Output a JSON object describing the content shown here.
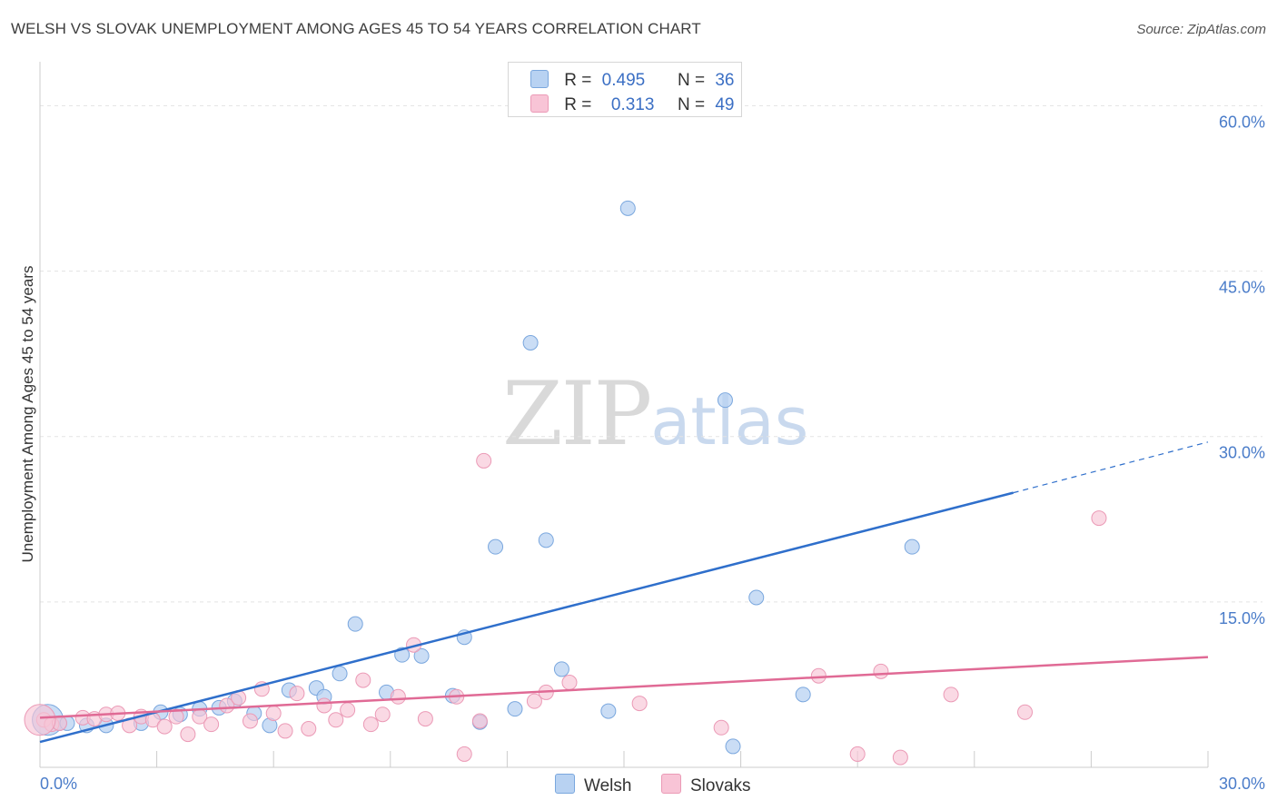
{
  "header": {
    "title": "WELSH VS SLOVAK UNEMPLOYMENT AMONG AGES 45 TO 54 YEARS CORRELATION CHART",
    "source": "Source: ZipAtlas.com"
  },
  "watermark": {
    "zip": "ZIP",
    "atlas": "atlas"
  },
  "legend": {
    "welsh": {
      "r_label": "R =",
      "r_value": "0.495",
      "n_label": "N =",
      "n_value": "36"
    },
    "slovaks": {
      "r_label": "R =",
      "r_value": "0.313",
      "n_label": "N =",
      "n_value": "49"
    }
  },
  "colors": {
    "welsh_fill": "#b8d2f2",
    "welsh_stroke": "#7aa7de",
    "welsh_line": "#2f6fcb",
    "slovaks_fill": "#f8c4d6",
    "slovaks_stroke": "#eb9ab6",
    "slovaks_line": "#e06a95",
    "axis_text": "#4a7cc9",
    "grid": "#e3e3e3"
  },
  "chart_data": {
    "type": "scatter",
    "title": "WELSH VS SLOVAK UNEMPLOYMENT AMONG AGES 45 TO 54 YEARS CORRELATION CHART",
    "xlabel": "",
    "ylabel": "Unemployment Among Ages 45 to 54 years",
    "xlim": [
      0,
      30
    ],
    "ylim": [
      0,
      63
    ],
    "x_tick_labels": [
      "0.0%",
      "30.0%"
    ],
    "y_ticks": [
      15,
      30,
      45,
      60
    ],
    "y_tick_labels": [
      "15.0%",
      "30.0%",
      "45.0%",
      "60.0%"
    ],
    "grid": true,
    "legend_position": "top-center",
    "series": [
      {
        "name": "Welsh",
        "points": [
          [
            0.2,
            4.3
          ],
          [
            0.5,
            4.0
          ],
          [
            0.7,
            4.0
          ],
          [
            1.2,
            3.8
          ],
          [
            1.7,
            3.8
          ],
          [
            2.6,
            4.0
          ],
          [
            3.1,
            5.0
          ],
          [
            3.6,
            4.8
          ],
          [
            4.1,
            5.3
          ],
          [
            4.6,
            5.4
          ],
          [
            5.0,
            6.0
          ],
          [
            5.5,
            4.9
          ],
          [
            5.9,
            3.8
          ],
          [
            6.4,
            7.0
          ],
          [
            7.1,
            7.2
          ],
          [
            7.3,
            6.4
          ],
          [
            7.7,
            8.5
          ],
          [
            8.1,
            13.0
          ],
          [
            8.9,
            6.8
          ],
          [
            9.3,
            10.2
          ],
          [
            9.8,
            10.1
          ],
          [
            10.6,
            6.5
          ],
          [
            10.9,
            11.8
          ],
          [
            11.3,
            4.1
          ],
          [
            11.7,
            20.0
          ],
          [
            12.2,
            5.3
          ],
          [
            12.6,
            38.5
          ],
          [
            13.0,
            20.6
          ],
          [
            13.4,
            8.9
          ],
          [
            14.6,
            5.1
          ],
          [
            15.1,
            50.7
          ],
          [
            17.6,
            33.3
          ],
          [
            17.8,
            1.9
          ],
          [
            18.4,
            15.4
          ],
          [
            19.6,
            6.6
          ],
          [
            22.4,
            20.0
          ]
        ]
      },
      {
        "name": "Slovaks",
        "points": [
          [
            0.1,
            4.3
          ],
          [
            0.3,
            3.9
          ],
          [
            0.5,
            4.0
          ],
          [
            1.1,
            4.5
          ],
          [
            1.4,
            4.4
          ],
          [
            1.7,
            4.8
          ],
          [
            2.0,
            4.9
          ],
          [
            2.3,
            3.8
          ],
          [
            2.6,
            4.6
          ],
          [
            2.9,
            4.3
          ],
          [
            3.2,
            3.7
          ],
          [
            3.5,
            4.6
          ],
          [
            3.8,
            3.0
          ],
          [
            4.1,
            4.6
          ],
          [
            4.4,
            3.9
          ],
          [
            4.8,
            5.6
          ],
          [
            5.1,
            6.3
          ],
          [
            5.4,
            4.2
          ],
          [
            5.7,
            7.1
          ],
          [
            6.0,
            4.9
          ],
          [
            6.3,
            3.3
          ],
          [
            6.6,
            6.7
          ],
          [
            6.9,
            3.5
          ],
          [
            7.3,
            5.6
          ],
          [
            7.6,
            4.3
          ],
          [
            7.9,
            5.2
          ],
          [
            8.3,
            7.9
          ],
          [
            8.5,
            3.9
          ],
          [
            8.8,
            4.8
          ],
          [
            9.2,
            6.4
          ],
          [
            9.6,
            11.1
          ],
          [
            9.9,
            4.4
          ],
          [
            10.7,
            6.4
          ],
          [
            10.9,
            1.2
          ],
          [
            11.3,
            4.2
          ],
          [
            11.4,
            27.8
          ],
          [
            12.7,
            6.0
          ],
          [
            13.0,
            6.8
          ],
          [
            13.6,
            7.7
          ],
          [
            15.4,
            5.8
          ],
          [
            17.5,
            3.6
          ],
          [
            20.0,
            8.3
          ],
          [
            21.0,
            1.2
          ],
          [
            21.6,
            8.7
          ],
          [
            22.1,
            0.9
          ],
          [
            23.4,
            6.6
          ],
          [
            25.3,
            5.0
          ],
          [
            27.2,
            22.6
          ],
          [
            0.0,
            4.3
          ]
        ]
      }
    ],
    "trendlines": [
      {
        "name": "Welsh",
        "x_start": 0,
        "y_start": 2.3,
        "x_end": 25,
        "y_end": 24.9,
        "dashed_to_x": 30,
        "dashed_to_y": 29.5
      },
      {
        "name": "Slovaks",
        "x_start": 0,
        "y_start": 4.5,
        "x_end": 30,
        "y_end": 10.0
      }
    ]
  }
}
